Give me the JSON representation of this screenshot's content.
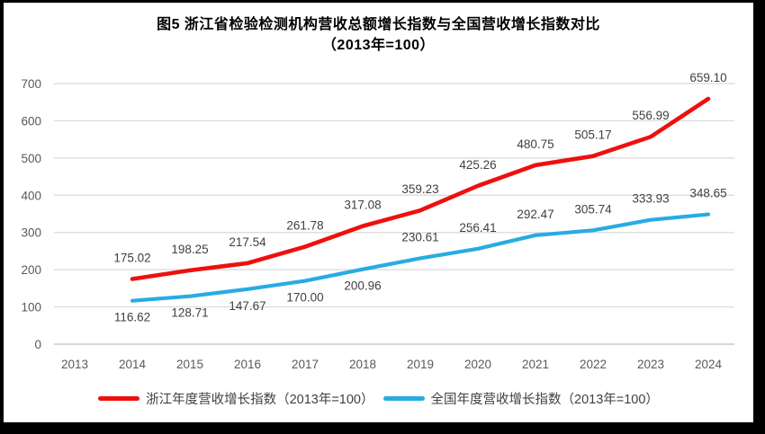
{
  "title": {
    "line1": "图5  浙江省检验检测机构营收总额增长指数与全国营收增长指数对比",
    "line2": "（2013年=100）"
  },
  "colors": {
    "zhejiang_line": "#ee100e",
    "national_line": "#29abe2",
    "gridline": "#d9d9d9",
    "axis_line": "#bfbfbf",
    "axis_text": "#595959",
    "data_label_text": "#404040",
    "title_text": "#000000",
    "frame_border": "#000000",
    "background": "#ffffff"
  },
  "chart_data": {
    "type": "line",
    "title": "图5  浙江省检验检测机构营收总额增长指数与全国营收增长指数对比（2013年=100）",
    "xlabel": "",
    "ylabel": "",
    "x_ticks": [
      "2013",
      "2014",
      "2015",
      "2016",
      "2017",
      "2018",
      "2019",
      "2020",
      "2021",
      "2022",
      "2023",
      "2024"
    ],
    "y_ticks": [
      0,
      100,
      200,
      300,
      400,
      500,
      600,
      700
    ],
    "ylim": [
      0,
      700
    ],
    "grid": true,
    "legend_position": "bottom",
    "series": [
      {
        "name": "浙江年度营收增长指数（2013年=100）",
        "color": "#ee100e",
        "years": [
          2014,
          2015,
          2016,
          2017,
          2018,
          2019,
          2020,
          2021,
          2022,
          2023,
          2024
        ],
        "values": [
          175.02,
          198.25,
          217.54,
          261.78,
          317.08,
          359.23,
          425.26,
          480.75,
          505.17,
          556.99,
          659.1
        ],
        "labels": [
          "175.02",
          "198.25",
          "217.54",
          "261.78",
          "317.08",
          "359.23",
          "425.26",
          "480.75",
          "505.17",
          "556.99",
          "659.10"
        ],
        "label_sides": [
          "above",
          "above",
          "above",
          "above",
          "above",
          "above",
          "above",
          "above",
          "above",
          "above",
          "above"
        ]
      },
      {
        "name": "全国年度营收增长指数（2013年=100）",
        "color": "#29abe2",
        "years": [
          2014,
          2015,
          2016,
          2017,
          2018,
          2019,
          2020,
          2021,
          2022,
          2023,
          2024
        ],
        "values": [
          116.62,
          128.71,
          147.67,
          170.0,
          200.96,
          230.61,
          256.41,
          292.47,
          305.74,
          333.93,
          348.65
        ],
        "labels": [
          "116.62",
          "128.71",
          "147.67",
          "170.00",
          "200.96",
          "230.61",
          "256.41",
          "292.47",
          "305.74",
          "333.93",
          "348.65"
        ],
        "label_sides": [
          "below",
          "below",
          "below",
          "below",
          "below",
          "above",
          "above",
          "above",
          "above",
          "above",
          "above"
        ]
      }
    ]
  }
}
